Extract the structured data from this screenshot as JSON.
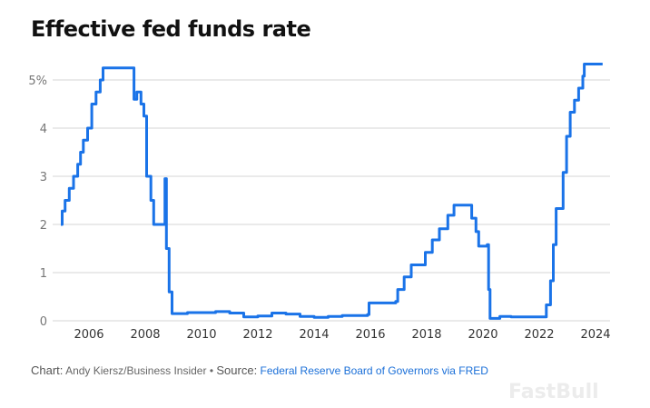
{
  "chart_data": {
    "type": "line",
    "title": "Effective fed funds rate",
    "xlabel": "",
    "ylabel": "",
    "xlim": [
      2005,
      2024.35
    ],
    "ylim": [
      0,
      5.5
    ],
    "x_ticks": [
      2006,
      2008,
      2010,
      2012,
      2014,
      2016,
      2018,
      2020,
      2022,
      2024
    ],
    "x_tick_labels": [
      "2006",
      "2008",
      "2010",
      "2012",
      "2014",
      "2016",
      "2018",
      "2020",
      "2022",
      "2024"
    ],
    "y_ticks": [
      0,
      1,
      2,
      3,
      4,
      5
    ],
    "y_tick_labels": [
      "0",
      "1",
      "2",
      "3",
      "4",
      "5%"
    ],
    "grid": "horizontal",
    "color": "#1a73e8",
    "series": [
      {
        "points": [
          [
            2005.0,
            2.0
          ],
          [
            2005.05,
            2.28
          ],
          [
            2005.15,
            2.5
          ],
          [
            2005.3,
            2.75
          ],
          [
            2005.45,
            3.0
          ],
          [
            2005.6,
            3.25
          ],
          [
            2005.7,
            3.5
          ],
          [
            2005.8,
            3.75
          ],
          [
            2005.95,
            4.0
          ],
          [
            2006.1,
            4.5
          ],
          [
            2006.25,
            4.75
          ],
          [
            2006.4,
            5.0
          ],
          [
            2006.5,
            5.25
          ],
          [
            2007.0,
            5.25
          ],
          [
            2007.55,
            5.25
          ],
          [
            2007.6,
            4.6
          ],
          [
            2007.7,
            4.75
          ],
          [
            2007.85,
            4.5
          ],
          [
            2007.95,
            4.25
          ],
          [
            2008.05,
            3.0
          ],
          [
            2008.1,
            3.0
          ],
          [
            2008.2,
            2.5
          ],
          [
            2008.3,
            2.0
          ],
          [
            2008.5,
            2.0
          ],
          [
            2008.65,
            2.0
          ],
          [
            2008.7,
            2.95
          ],
          [
            2008.75,
            1.5
          ],
          [
            2008.85,
            0.6
          ],
          [
            2008.95,
            0.15
          ],
          [
            2009.5,
            0.17
          ],
          [
            2010.5,
            0.19
          ],
          [
            2011.0,
            0.16
          ],
          [
            2011.5,
            0.08
          ],
          [
            2012.0,
            0.1
          ],
          [
            2012.5,
            0.16
          ],
          [
            2013.0,
            0.14
          ],
          [
            2013.5,
            0.09
          ],
          [
            2014.0,
            0.07
          ],
          [
            2014.5,
            0.09
          ],
          [
            2015.0,
            0.11
          ],
          [
            2015.9,
            0.13
          ],
          [
            2015.95,
            0.37
          ],
          [
            2016.9,
            0.4
          ],
          [
            2016.97,
            0.65
          ],
          [
            2017.2,
            0.91
          ],
          [
            2017.45,
            1.16
          ],
          [
            2017.95,
            1.42
          ],
          [
            2018.2,
            1.68
          ],
          [
            2018.45,
            1.91
          ],
          [
            2018.75,
            2.19
          ],
          [
            2018.97,
            2.4
          ],
          [
            2019.55,
            2.4
          ],
          [
            2019.6,
            2.13
          ],
          [
            2019.75,
            1.85
          ],
          [
            2019.85,
            1.55
          ],
          [
            2020.15,
            1.58
          ],
          [
            2020.2,
            0.65
          ],
          [
            2020.25,
            0.05
          ],
          [
            2020.6,
            0.09
          ],
          [
            2021.0,
            0.08
          ],
          [
            2021.5,
            0.08
          ],
          [
            2022.2,
            0.08
          ],
          [
            2022.25,
            0.33
          ],
          [
            2022.4,
            0.83
          ],
          [
            2022.5,
            1.58
          ],
          [
            2022.6,
            2.33
          ],
          [
            2022.85,
            3.08
          ],
          [
            2022.97,
            3.83
          ],
          [
            2023.1,
            4.33
          ],
          [
            2023.25,
            4.58
          ],
          [
            2023.4,
            4.83
          ],
          [
            2023.55,
            5.08
          ],
          [
            2023.6,
            5.33
          ],
          [
            2024.25,
            5.33
          ]
        ]
      }
    ]
  },
  "footer": {
    "chart_label": "Chart:",
    "chart_credit": "Andy Kiersz/Business Insider",
    "separator": "•",
    "source_label": "Source:",
    "source_link": "Federal Reserve Board of Governors via FRED"
  },
  "watermark": "FastBull"
}
